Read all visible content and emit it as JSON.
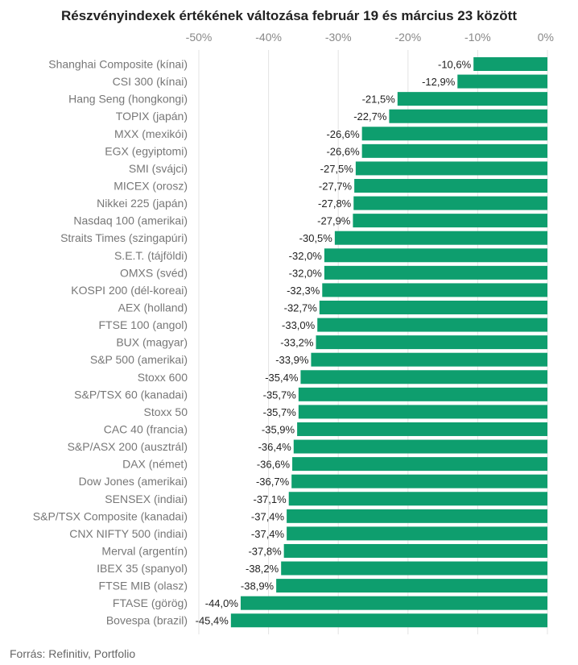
{
  "chart_data": {
    "type": "bar",
    "orientation": "horizontal",
    "title": "Részvényindexek értékének változása február 19 és március 23 között",
    "source": "Forrás: Refinitiv, Portfolio",
    "xlim": [
      -50,
      0
    ],
    "x_ticks": [
      {
        "value": -50,
        "label": "-50%"
      },
      {
        "value": -40,
        "label": "-40%"
      },
      {
        "value": -30,
        "label": "-30%"
      },
      {
        "value": -20,
        "label": "-20%"
      },
      {
        "value": -10,
        "label": "-10%"
      },
      {
        "value": 0,
        "label": "0%"
      }
    ],
    "grid": true,
    "bar_color": "#0e9e6e",
    "categories": [
      "Shanghai Composite (kínai)",
      "CSI 300 (kínai)",
      "Hang Seng (hongkongi)",
      "TOPIX (japán)",
      "MXX (mexikói)",
      "EGX (egyiptomi)",
      "SMI (svájci)",
      "MICEX (orosz)",
      "Nikkei 225 (japán)",
      "Nasdaq 100 (amerikai)",
      "Straits Times (szingapúri)",
      "S.E.T. (tájföldi)",
      "OMXS (svéd)",
      "KOSPI 200 (dél-koreai)",
      "AEX (holland)",
      "FTSE 100 (angol)",
      "BUX (magyar)",
      "S&P 500 (amerikai)",
      "Stoxx 600",
      "S&P/TSX 60 (kanadai)",
      "Stoxx 50",
      "CAC 40 (francia)",
      "S&P/ASX 200 (ausztrál)",
      "DAX (német)",
      "Dow Jones (amerikai)",
      "SENSEX (indiai)",
      "S&P/TSX Composite (kanadai)",
      "CNX NIFTY 500 (indiai)",
      "Merval (argentín)",
      "IBEX 35 (spanyol)",
      "FTSE MIB (olasz)",
      "FTASE (görög)",
      "Bovespa (brazil)"
    ],
    "values": [
      -10.6,
      -12.9,
      -21.5,
      -22.7,
      -26.6,
      -26.6,
      -27.5,
      -27.7,
      -27.8,
      -27.9,
      -30.5,
      -32.0,
      -32.0,
      -32.3,
      -32.7,
      -33.0,
      -33.2,
      -33.9,
      -35.4,
      -35.7,
      -35.7,
      -35.9,
      -36.4,
      -36.6,
      -36.7,
      -37.1,
      -37.4,
      -37.4,
      -37.8,
      -38.2,
      -38.9,
      -44.0,
      -45.4
    ],
    "value_labels": [
      "-10,6%",
      "-12,9%",
      "-21,5%",
      "-22,7%",
      "-26,6%",
      "-26,6%",
      "-27,5%",
      "-27,7%",
      "-27,8%",
      "-27,9%",
      "-30,5%",
      "-32,0%",
      "-32,0%",
      "-32,3%",
      "-32,7%",
      "-33,0%",
      "-33,2%",
      "-33,9%",
      "-35,4%",
      "-35,7%",
      "-35,7%",
      "-35,9%",
      "-36,4%",
      "-36,6%",
      "-36,7%",
      "-37,1%",
      "-37,4%",
      "-37,4%",
      "-37,8%",
      "-38,2%",
      "-38,9%",
      "-44,0%",
      "-45,4%"
    ]
  }
}
